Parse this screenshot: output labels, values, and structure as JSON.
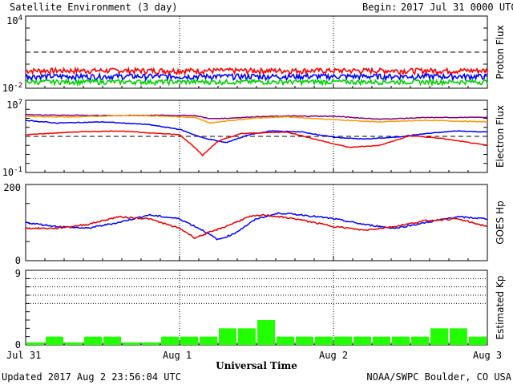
{
  "header": {
    "title": "Satellite Environment (3 day)",
    "begin_label": "Begin:",
    "begin_value": "2017 Jul 31 0000 UTC"
  },
  "footer": {
    "updated": "Updated 2017 Aug  2 23:56:04 UTC",
    "credit": "NOAA/SWPC Boulder, CO USA"
  },
  "chart_data": [
    {
      "type": "line",
      "panel": "proton",
      "ylabel": "Proton Flux",
      "scale": "log",
      "ylim_exp": [
        -2,
        4
      ],
      "yticks": [
        {
          "base": "10",
          "exp": "4"
        },
        {
          "base": "10",
          "exp": "-2"
        }
      ],
      "threshold": 10,
      "x_days": [
        0,
        3
      ],
      "series": [
        {
          "color": "#ff0000",
          "base": 0.3,
          "jitter": 0.15
        },
        {
          "color": "#0000ff",
          "base": 0.1,
          "jitter": 0.05
        },
        {
          "color": "#00d000",
          "base": 0.035,
          "jitter": 0.015
        }
      ]
    },
    {
      "type": "line",
      "panel": "electron",
      "ylabel": "Electron Flux",
      "scale": "log",
      "ylim_exp": [
        -1,
        7
      ],
      "yticks": [
        {
          "base": "10",
          "exp": "7"
        },
        {
          "base": "10",
          "exp": "-1"
        }
      ],
      "threshold": 1000,
      "series": [
        {
          "color": "#800080",
          "x": [
            0,
            0.3,
            0.6,
            0.9,
            1.1,
            1.2,
            1.3,
            1.5,
            1.7,
            2.0,
            2.3,
            2.6,
            3.0
          ],
          "y": [
            250000,
            220000,
            200000,
            220000,
            200000,
            90000,
            100000,
            150000,
            180000,
            170000,
            80000,
            120000,
            130000
          ]
        },
        {
          "color": "#ff9900",
          "x": [
            0,
            0.3,
            0.6,
            0.9,
            1.1,
            1.2,
            1.3,
            1.5,
            1.7,
            2.0,
            2.3,
            2.6,
            3.0
          ],
          "y": [
            160000,
            140000,
            200000,
            180000,
            120000,
            30000,
            50000,
            110000,
            150000,
            70000,
            40000,
            60000,
            40000
          ]
        },
        {
          "color": "#0000ff",
          "x": [
            0,
            0.2,
            0.5,
            0.8,
            1.0,
            1.15,
            1.3,
            1.45,
            1.6,
            1.8,
            2.0,
            2.2,
            2.4,
            2.6,
            2.8,
            3.0
          ],
          "y": [
            60000,
            30000,
            40000,
            20000,
            6000,
            700,
            200,
            1500,
            4000,
            3000,
            800,
            500,
            800,
            2000,
            4000,
            3000
          ]
        },
        {
          "color": "#ff0000",
          "x": [
            0,
            0.3,
            0.6,
            0.8,
            1.0,
            1.1,
            1.15,
            1.25,
            1.4,
            1.55,
            1.7,
            1.9,
            2.1,
            2.3,
            2.5,
            2.7,
            3.0
          ],
          "y": [
            1500,
            3000,
            4000,
            2500,
            1500,
            60,
            8,
            300,
            2000,
            2500,
            3000,
            400,
            60,
            100,
            1200,
            600,
            100
          ]
        }
      ]
    },
    {
      "type": "line",
      "panel": "hp",
      "ylabel": "GOES Hp",
      "ylim": [
        0,
        200
      ],
      "yticks": [
        "200",
        "0"
      ],
      "series": [
        {
          "color": "#0000ff",
          "x": [
            0,
            0.2,
            0.4,
            0.6,
            0.8,
            1.0,
            1.15,
            1.25,
            1.35,
            1.5,
            1.65,
            1.8,
            2.0,
            2.2,
            2.4,
            2.6,
            2.8,
            3.0
          ],
          "y": [
            100,
            90,
            85,
            100,
            120,
            110,
            80,
            55,
            70,
            110,
            125,
            120,
            110,
            95,
            85,
            100,
            115,
            110
          ]
        },
        {
          "color": "#e00000",
          "x": [
            0,
            0.2,
            0.4,
            0.6,
            0.8,
            1.0,
            1.1,
            1.2,
            1.3,
            1.45,
            1.55,
            1.75,
            2.0,
            2.2,
            2.4,
            2.6,
            2.8,
            3.0
          ],
          "y": [
            85,
            85,
            95,
            115,
            110,
            85,
            60,
            75,
            90,
            115,
            120,
            110,
            90,
            80,
            90,
            105,
            110,
            90
          ]
        }
      ]
    },
    {
      "type": "bar",
      "panel": "kp",
      "ylabel": "Estimated Kp",
      "ylim": [
        0,
        9
      ],
      "yticks": [
        "9",
        "0"
      ],
      "color": "#22ff00",
      "values": [
        0.3,
        1,
        0.3,
        1,
        1,
        0.3,
        0.3,
        1,
        1,
        1,
        2,
        2,
        3,
        1,
        1,
        1,
        1,
        1,
        1,
        1,
        1,
        2,
        2,
        1
      ]
    }
  ],
  "x_axis": {
    "label": "Universal Time",
    "ticks": [
      "Jul 31",
      "Aug 1",
      "Aug 2",
      "Aug 3"
    ]
  }
}
